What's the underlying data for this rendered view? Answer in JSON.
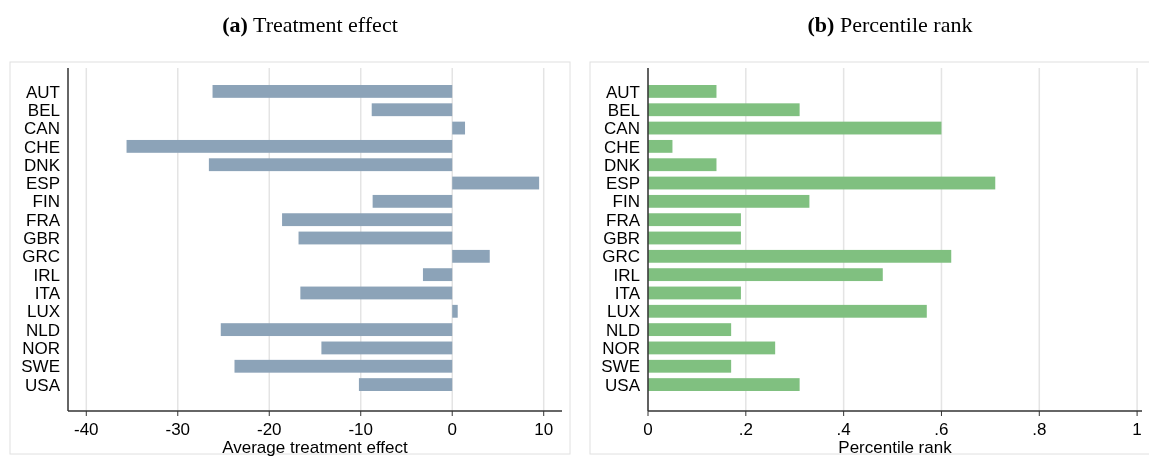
{
  "chart_data": [
    {
      "type": "bar",
      "orientation": "horizontal",
      "title": "(a) Treatment effect",
      "xlabel": "Average treatment effect",
      "categories": [
        "AUT",
        "BEL",
        "CAN",
        "CHE",
        "DNK",
        "ESP",
        "FIN",
        "FRA",
        "GBR",
        "GRC",
        "IRL",
        "ITA",
        "LUX",
        "NLD",
        "NOR",
        "SWE",
        "USA"
      ],
      "values": [
        -26.2,
        -8.8,
        1.4,
        -35.6,
        -26.6,
        9.5,
        -8.7,
        -18.6,
        -16.8,
        4.1,
        -3.2,
        -16.6,
        0.6,
        -25.3,
        -14.3,
        -23.8,
        -10.2
      ],
      "color": "#8ca3b8",
      "xlim": [
        -42,
        12
      ],
      "xticks": [
        -40,
        -30,
        -20,
        -10,
        0,
        10
      ],
      "grid": "x"
    },
    {
      "type": "bar",
      "orientation": "horizontal",
      "title": "(b) Percentile rank",
      "xlabel": "Percentile rank",
      "categories": [
        "AUT",
        "BEL",
        "CAN",
        "CHE",
        "DNK",
        "ESP",
        "FIN",
        "FRA",
        "GBR",
        "GRC",
        "IRL",
        "ITA",
        "LUX",
        "NLD",
        "NOR",
        "SWE",
        "USA"
      ],
      "values": [
        0.14,
        0.31,
        0.6,
        0.05,
        0.14,
        0.71,
        0.33,
        0.19,
        0.19,
        0.62,
        0.48,
        0.19,
        0.57,
        0.17,
        0.26,
        0.17,
        0.31
      ],
      "color": "#80c080",
      "xlim": [
        0,
        1.01
      ],
      "xticks": [
        0,
        {
          "value": 0.2,
          "label": ".2"
        },
        {
          "value": 0.4,
          "label": ".4"
        },
        {
          "value": 0.6,
          "label": ".6"
        },
        {
          "value": 0.8,
          "label": ".8"
        },
        1
      ],
      "grid": "x"
    }
  ]
}
